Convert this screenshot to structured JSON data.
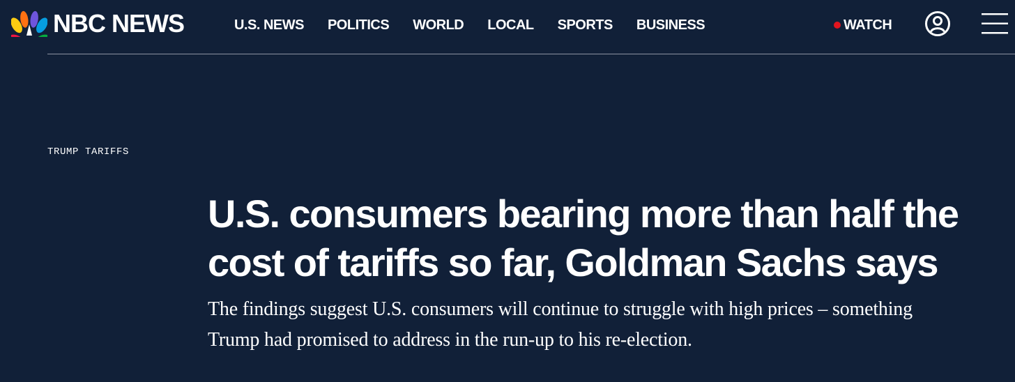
{
  "header": {
    "logo_text": "NBC NEWS",
    "nav": [
      {
        "label": "U.S. NEWS"
      },
      {
        "label": "POLITICS"
      },
      {
        "label": "WORLD"
      },
      {
        "label": "LOCAL"
      },
      {
        "label": "SPORTS"
      },
      {
        "label": "BUSINESS"
      }
    ],
    "watch_label": "WATCH",
    "icons": {
      "logo": "nbc-peacock-icon",
      "live": "live-dot-icon",
      "account": "user-account-icon",
      "menu": "hamburger-menu-icon"
    }
  },
  "article": {
    "eyebrow": "TRUMP TARIFFS",
    "headline": "U.S. consumers bearing more than half the cost of tariffs so far, Goldman Sachs says",
    "dek": "The findings suggest U.S. consumers will continue to struggle with high prices – something Trump had promised to address in the run-up to his re-election."
  },
  "colors": {
    "background": "#112038",
    "text": "#ffffff",
    "live_dot": "#e1141e",
    "divider": "#8d94a3",
    "peacock": [
      "#fccc12",
      "#ef1541",
      "#6e55dc",
      "#069de0",
      "#05ac3f",
      "#ff7112"
    ]
  }
}
